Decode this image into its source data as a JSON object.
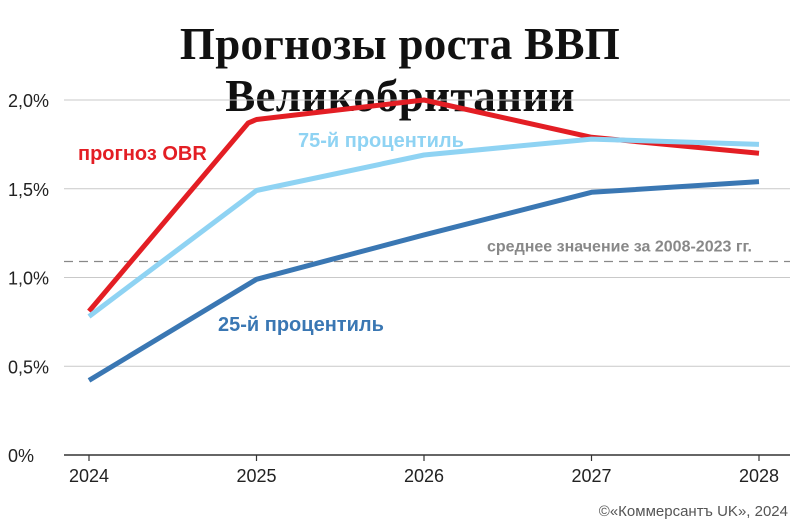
{
  "chart_data": {
    "type": "line",
    "title": "Прогнозы роста ВВП Великобритании",
    "xlabel": "",
    "ylabel": "",
    "x": [
      2024,
      2025,
      2026,
      2027,
      2028
    ],
    "x_tick_labels": [
      "2024",
      "2025",
      "2026",
      "2027",
      "2028"
    ],
    "ylim": [
      0,
      2.0
    ],
    "y_ticks": [
      0,
      0.5,
      1.0,
      1.5,
      2.0
    ],
    "y_tick_labels": [
      "0%",
      "0,5%",
      "1,0%",
      "1,5%",
      "2,0%"
    ],
    "grid": true,
    "series": [
      {
        "name": "прогноз OBR",
        "color": "#e31e24",
        "points": [
          [
            2024,
            0.81
          ],
          [
            2024.95,
            1.87
          ],
          [
            2025,
            1.89
          ],
          [
            2026,
            2.0
          ],
          [
            2027,
            1.79
          ],
          [
            2028,
            1.7
          ]
        ]
      },
      {
        "name": "75-й процентиль",
        "color": "#8fd3f3",
        "points": [
          [
            2024,
            0.78
          ],
          [
            2025,
            1.49
          ],
          [
            2026,
            1.69
          ],
          [
            2027,
            1.78
          ],
          [
            2028,
            1.75
          ]
        ]
      },
      {
        "name": "25-й процентиль",
        "color": "#3a77b3",
        "points": [
          [
            2024,
            0.42
          ],
          [
            2025,
            0.99
          ],
          [
            2026,
            1.24
          ],
          [
            2027,
            1.48
          ],
          [
            2028,
            1.54
          ]
        ]
      }
    ],
    "reference_line": {
      "label": "среднее значение за 2008-2023 гг.",
      "value": 1.09,
      "color": "#888888"
    }
  },
  "copyright": "©«Коммерсантъ UK», 2024"
}
